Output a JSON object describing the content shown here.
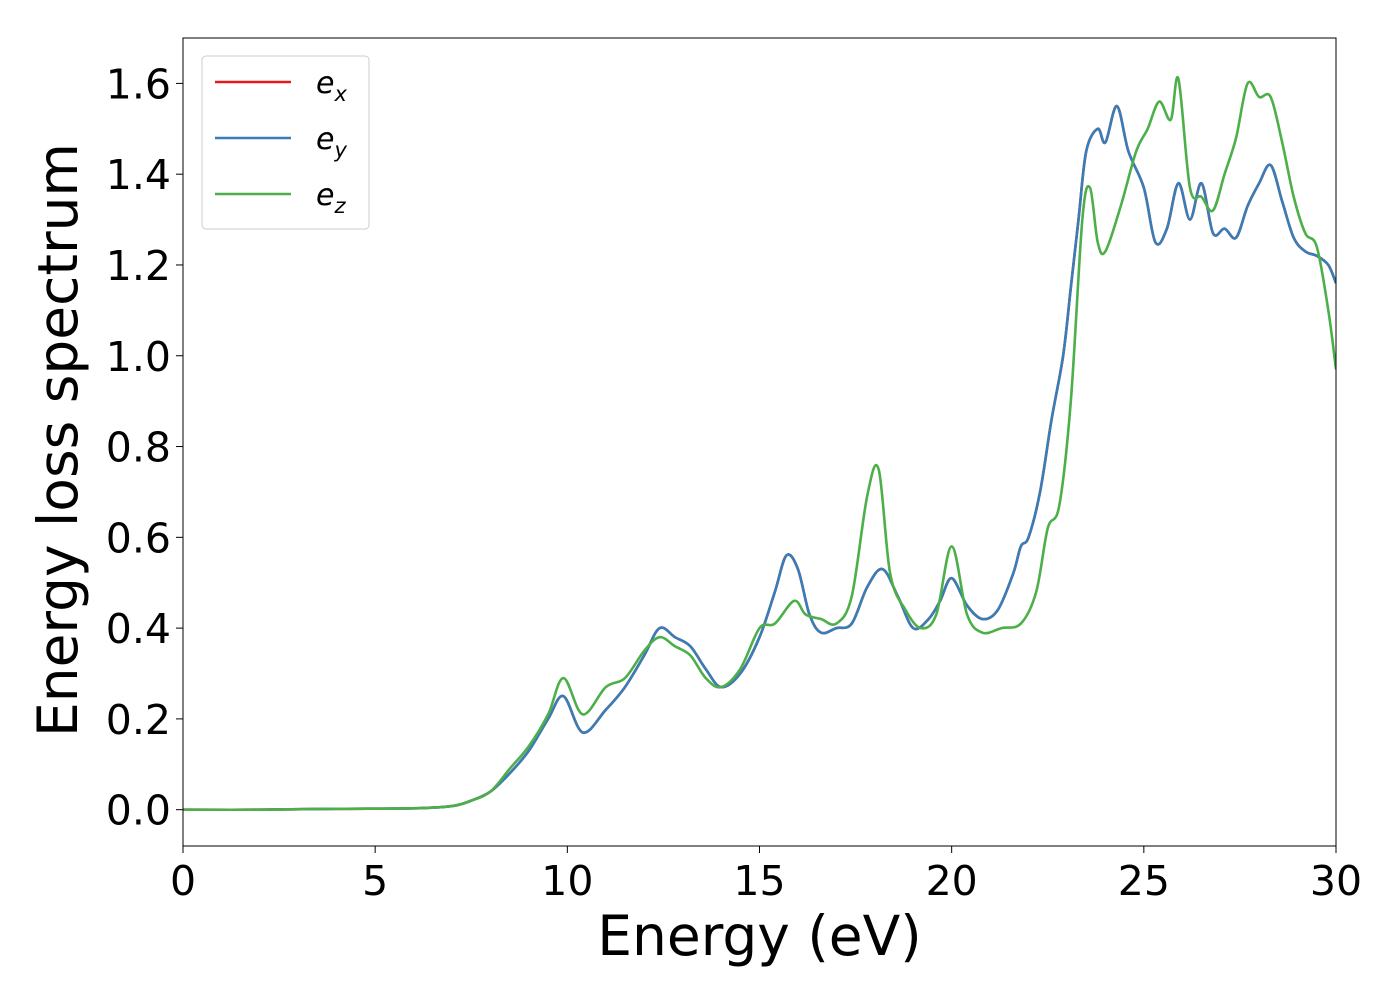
{
  "chart_data": {
    "type": "line",
    "title": "",
    "xlabel": "Energy (eV)",
    "ylabel": "Energy loss spectrum",
    "xlim": [
      0,
      30
    ],
    "ylim": [
      -0.08,
      1.7
    ],
    "xticks": [
      "0",
      "5",
      "10",
      "15",
      "20",
      "25",
      "30"
    ],
    "yticks": [
      "0.0",
      "0.2",
      "0.4",
      "0.6",
      "0.8",
      "1.0",
      "1.2",
      "1.4",
      "1.6"
    ],
    "grid": false,
    "legend_position": "top-left",
    "series": [
      {
        "name": "e_x",
        "legend_base": "e",
        "legend_sub": "x",
        "color": "#e41a1c",
        "x": [
          0,
          2,
          4,
          6,
          7,
          7.5,
          8,
          8.5,
          9,
          9.5,
          9.9,
          10.4,
          11,
          11.5,
          12,
          12.4,
          12.8,
          13.2,
          13.6,
          14,
          14.5,
          15,
          15.4,
          15.7,
          16,
          16.3,
          16.6,
          17,
          17.4,
          17.8,
          18.2,
          18.6,
          19,
          19.4,
          19.7,
          20,
          20.4,
          20.8,
          21.2,
          21.6,
          21.8,
          22,
          22.3,
          22.6,
          22.9,
          23.1,
          23.3,
          23.5,
          23.8,
          24,
          24.3,
          24.6,
          25,
          25.3,
          25.6,
          25.9,
          26.2,
          26.5,
          26.8,
          27.1,
          27.4,
          27.7,
          28,
          28.3,
          28.6,
          28.9,
          29.2,
          29.5,
          29.8,
          30
        ],
        "values": [
          0,
          0,
          0.002,
          0.003,
          0.008,
          0.02,
          0.04,
          0.08,
          0.13,
          0.2,
          0.25,
          0.17,
          0.22,
          0.27,
          0.34,
          0.4,
          0.38,
          0.36,
          0.31,
          0.27,
          0.3,
          0.38,
          0.48,
          0.56,
          0.53,
          0.43,
          0.39,
          0.4,
          0.41,
          0.49,
          0.53,
          0.47,
          0.4,
          0.42,
          0.46,
          0.51,
          0.45,
          0.42,
          0.44,
          0.52,
          0.58,
          0.6,
          0.7,
          0.86,
          1.0,
          1.15,
          1.3,
          1.45,
          1.5,
          1.47,
          1.55,
          1.45,
          1.37,
          1.25,
          1.28,
          1.38,
          1.3,
          1.38,
          1.27,
          1.28,
          1.26,
          1.33,
          1.38,
          1.42,
          1.34,
          1.26,
          1.23,
          1.22,
          1.2,
          1.16
        ]
      },
      {
        "name": "e_y",
        "legend_base": "e",
        "legend_sub": "y",
        "color": "#377eb8",
        "x": [
          0,
          2,
          4,
          6,
          7,
          7.5,
          8,
          8.5,
          9,
          9.5,
          9.9,
          10.4,
          11,
          11.5,
          12,
          12.4,
          12.8,
          13.2,
          13.6,
          14,
          14.5,
          15,
          15.4,
          15.7,
          16,
          16.3,
          16.6,
          17,
          17.4,
          17.8,
          18.2,
          18.6,
          19,
          19.4,
          19.7,
          20,
          20.4,
          20.8,
          21.2,
          21.6,
          21.8,
          22,
          22.3,
          22.6,
          22.9,
          23.1,
          23.3,
          23.5,
          23.8,
          24,
          24.3,
          24.6,
          25,
          25.3,
          25.6,
          25.9,
          26.2,
          26.5,
          26.8,
          27.1,
          27.4,
          27.7,
          28,
          28.3,
          28.6,
          28.9,
          29.2,
          29.5,
          29.8,
          30
        ],
        "values": [
          0,
          0,
          0.002,
          0.003,
          0.008,
          0.02,
          0.04,
          0.08,
          0.13,
          0.2,
          0.25,
          0.17,
          0.22,
          0.27,
          0.34,
          0.4,
          0.38,
          0.36,
          0.31,
          0.27,
          0.3,
          0.38,
          0.48,
          0.56,
          0.53,
          0.43,
          0.39,
          0.4,
          0.41,
          0.49,
          0.53,
          0.47,
          0.4,
          0.42,
          0.46,
          0.51,
          0.45,
          0.42,
          0.44,
          0.52,
          0.58,
          0.6,
          0.7,
          0.86,
          1.0,
          1.15,
          1.3,
          1.45,
          1.5,
          1.47,
          1.55,
          1.45,
          1.37,
          1.25,
          1.28,
          1.38,
          1.3,
          1.38,
          1.27,
          1.28,
          1.26,
          1.33,
          1.38,
          1.42,
          1.34,
          1.26,
          1.23,
          1.22,
          1.2,
          1.16
        ]
      },
      {
        "name": "e_z",
        "legend_base": "e",
        "legend_sub": "z",
        "color": "#4daf4a",
        "x": [
          0,
          2,
          4,
          6,
          7,
          7.5,
          8,
          8.5,
          9,
          9.5,
          9.9,
          10.4,
          11,
          11.5,
          12,
          12.4,
          12.8,
          13.2,
          13.6,
          14,
          14.5,
          15,
          15.4,
          15.9,
          16.2,
          16.6,
          17,
          17.4,
          17.8,
          18.1,
          18.4,
          18.8,
          19.2,
          19.6,
          20,
          20.4,
          20.8,
          21.3,
          21.8,
          22.2,
          22.5,
          22.8,
          23.1,
          23.4,
          23.6,
          23.8,
          24,
          24.4,
          24.8,
          25.1,
          25.4,
          25.7,
          25.9,
          26.2,
          26.5,
          26.8,
          27.1,
          27.4,
          27.7,
          28,
          28.3,
          28.6,
          28.9,
          29.2,
          29.5,
          29.8,
          30
        ],
        "values": [
          0,
          0,
          0.002,
          0.003,
          0.008,
          0.02,
          0.04,
          0.09,
          0.14,
          0.21,
          0.29,
          0.21,
          0.27,
          0.29,
          0.35,
          0.38,
          0.36,
          0.34,
          0.29,
          0.27,
          0.31,
          0.4,
          0.41,
          0.46,
          0.43,
          0.42,
          0.41,
          0.47,
          0.69,
          0.75,
          0.52,
          0.44,
          0.4,
          0.43,
          0.58,
          0.43,
          0.39,
          0.4,
          0.41,
          0.48,
          0.62,
          0.67,
          0.9,
          1.3,
          1.37,
          1.25,
          1.23,
          1.33,
          1.45,
          1.5,
          1.56,
          1.52,
          1.61,
          1.37,
          1.35,
          1.32,
          1.4,
          1.48,
          1.6,
          1.57,
          1.57,
          1.47,
          1.35,
          1.27,
          1.24,
          1.1,
          0.97
        ]
      }
    ]
  }
}
